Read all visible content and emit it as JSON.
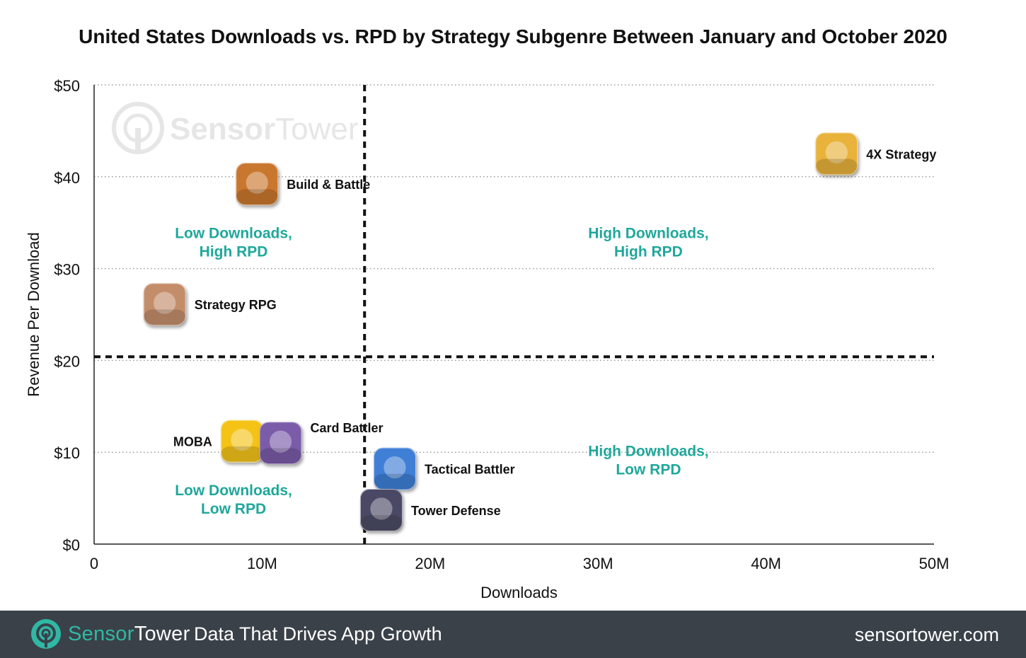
{
  "chart_data": {
    "type": "scatter",
    "title": "United States Downloads vs. RPD by Strategy Subgenre Between January and October 2020",
    "xlabel": "Downloads",
    "ylabel": "Revenue Per Download",
    "xlim": [
      0,
      50
    ],
    "ylim": [
      0,
      50
    ],
    "x_ticks": [
      {
        "value": 0,
        "label": "0"
      },
      {
        "value": 10,
        "label": "10M"
      },
      {
        "value": 20,
        "label": "20M"
      },
      {
        "value": 30,
        "label": "30M"
      },
      {
        "value": 40,
        "label": "40M"
      },
      {
        "value": 50,
        "label": "50M"
      }
    ],
    "y_ticks": [
      {
        "value": 0,
        "label": "$0"
      },
      {
        "value": 10,
        "label": "$10"
      },
      {
        "value": 20,
        "label": "$20"
      },
      {
        "value": 30,
        "label": "$30"
      },
      {
        "value": 40,
        "label": "$40"
      },
      {
        "value": 50,
        "label": "$50"
      }
    ],
    "grid": "horizontal-dotted",
    "points": [
      {
        "name": "4X Strategy",
        "x": 44.2,
        "y": 42.5,
        "icon": "4x-strategy-app-icon",
        "label_side": "right",
        "color": "#e8b23a"
      },
      {
        "name": "Build & Battle",
        "x": 9.7,
        "y": 39.2,
        "icon": "build-battle-app-icon",
        "label_side": "right",
        "color": "#c9772e"
      },
      {
        "name": "Strategy RPG",
        "x": 4.2,
        "y": 26.1,
        "icon": "strategy-rpg-app-icon",
        "label_side": "right",
        "color": "#c48d6b"
      },
      {
        "name": "MOBA",
        "x": 8.8,
        "y": 11.2,
        "icon": "moba-app-icon",
        "label_side": "left",
        "color": "#f4c318"
      },
      {
        "name": "Card Battler",
        "x": 11.1,
        "y": 11.0,
        "icon": "card-battler-app-icon",
        "label_side": "right-high",
        "color": "#7a5ba8"
      },
      {
        "name": "Tactical Battler",
        "x": 17.9,
        "y": 8.2,
        "icon": "tactical-battler-app-icon",
        "label_side": "right",
        "color": "#3f7fd6"
      },
      {
        "name": "Tower Defense",
        "x": 17.1,
        "y": 3.7,
        "icon": "tower-defense-app-icon",
        "label_side": "right",
        "color": "#4a4a66"
      }
    ],
    "reference_lines": {
      "x": 16.1,
      "y": 20.4
    },
    "quadrant_labels": [
      {
        "line1": "Low Downloads,",
        "line2": "High RPD",
        "x": 8.3,
        "y": 33
      },
      {
        "line1": "High Downloads,",
        "line2": "High RPD",
        "x": 33,
        "y": 33
      },
      {
        "line1": "Low Downloads,",
        "line2": "Low RPD",
        "x": 8.3,
        "y": 5
      },
      {
        "line1": "High Downloads,",
        "line2": "Low RPD",
        "x": 33,
        "y": 9.3
      }
    ],
    "quadrant_label_color": "#1fa89a"
  },
  "watermark": {
    "brand_part1": "Sensor",
    "brand_part2": "Tower",
    "icon": "sensortower-logo-icon"
  },
  "footer": {
    "brand_part1": "Sensor",
    "brand_part2": "Tower",
    "tagline": "Data That Drives App Growth",
    "url": "sensortower.com",
    "icon": "sensortower-logo-icon",
    "background_color": "#3a4149",
    "accent_color": "#2fb8a4"
  }
}
